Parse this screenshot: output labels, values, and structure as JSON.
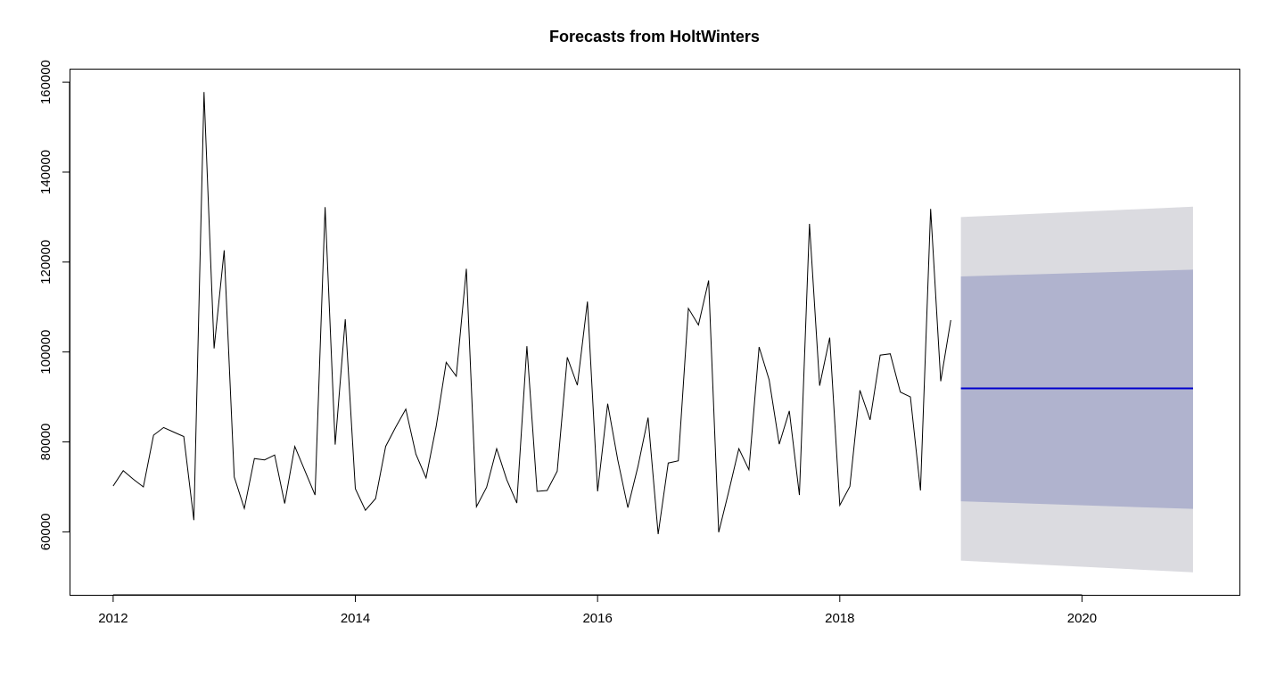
{
  "chart_data": {
    "type": "line",
    "title": "Forecasts from HoltWinters",
    "xlabel": "",
    "ylabel": "",
    "xlim": [
      2011.64,
      2021.3
    ],
    "ylim": [
      46000,
      163000
    ],
    "x_ticks": [
      2012,
      2014,
      2016,
      2018,
      2020
    ],
    "x_tick_labels": [
      "2012",
      "2014",
      "2016",
      "2018",
      "2020"
    ],
    "y_ticks": [
      60000,
      80000,
      100000,
      120000,
      140000,
      160000
    ],
    "y_tick_labels": [
      "60000",
      "80000",
      "100000",
      "120000",
      "140000",
      "160000"
    ],
    "colors": {
      "observed": "#000000",
      "forecast": "#0000cd",
      "interval_80": "#b0b3ce",
      "interval_95": "#dbdbe0"
    },
    "start": 2012,
    "frequency": 12,
    "observed": [
      70200,
      73600,
      71700,
      70000,
      81500,
      83200,
      82200,
      81200,
      62600,
      157800,
      100800,
      122600,
      72200,
      65200,
      76300,
      76000,
      77100,
      66300,
      79000,
      73600,
      68200,
      132200,
      79400,
      107300,
      69600,
      64800,
      67400,
      79000,
      83300,
      87300,
      77300,
      72000,
      83400,
      97700,
      94600,
      118500,
      65600,
      69900,
      78500,
      71600,
      66400,
      101300,
      69000,
      69200,
      73500,
      98800,
      92600,
      111200,
      69000,
      88500,
      76000,
      65400,
      74500,
      85400,
      59500,
      75300,
      75800,
      109700,
      106000,
      115900,
      59900,
      69000,
      78500,
      73800,
      101100,
      93800,
      79500,
      86900,
      68200,
      128500,
      92500,
      103200,
      65900,
      70100,
      91500,
      84900,
      99300,
      99600,
      91100,
      90000,
      69200,
      131800,
      93500,
      107100
    ],
    "forecast": {
      "x": [
        2019.0,
        2020.9167
      ],
      "mean": [
        91900,
        91900
      ],
      "lo80": [
        66800,
        65100
      ],
      "hi80": [
        116800,
        118300
      ],
      "lo95": [
        53600,
        51000
      ],
      "hi95": [
        130000,
        132300
      ]
    }
  }
}
